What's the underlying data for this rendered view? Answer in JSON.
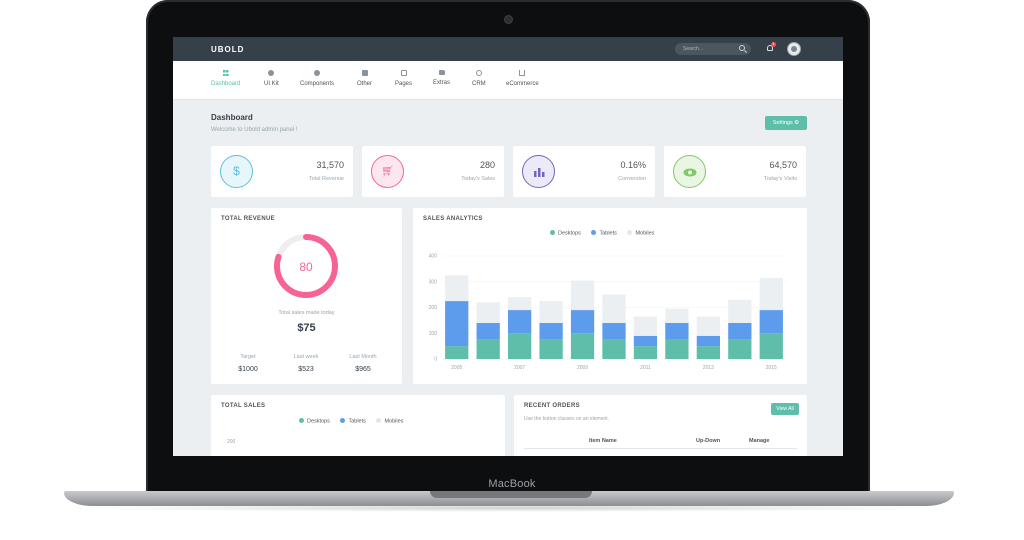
{
  "device": {
    "brand": "MacBook"
  },
  "topbar": {
    "logo": "UBOLD",
    "search_placeholder": "Search...",
    "notification_count": "1"
  },
  "menu": [
    {
      "label": "Dashboard",
      "icon": "grid-icon",
      "active": true
    },
    {
      "label": "UI Kit",
      "icon": "palette-icon"
    },
    {
      "label": "Components",
      "icon": "layers-icon"
    },
    {
      "label": "Other",
      "icon": "file-icon"
    },
    {
      "label": "Pages",
      "icon": "pages-icon"
    },
    {
      "label": "Extras",
      "icon": "folder-icon"
    },
    {
      "label": "CRM",
      "icon": "user-icon"
    },
    {
      "label": "eCommerce",
      "icon": "cart-icon"
    }
  ],
  "page": {
    "title": "Dashboard",
    "subtitle": "Welcome to Ubold admin panel !",
    "settings_label": "Settings"
  },
  "stats": [
    {
      "value": "31,570",
      "label": "Total Revenue",
      "icon": "dollar-icon",
      "color": "#5bc0de",
      "bg": "#e6f6fb"
    },
    {
      "value": "280",
      "label": "Today's Sales",
      "icon": "cart-icon",
      "color": "#f76397",
      "bg": "#fde7ef"
    },
    {
      "value": "0.16%",
      "label": "Conversion",
      "icon": "bar-chart-icon",
      "color": "#7266ba",
      "bg": "#eceaf6"
    },
    {
      "value": "64,570",
      "label": "Today's Visits",
      "icon": "eye-icon",
      "color": "#81c868",
      "bg": "#e9f6e4"
    }
  ],
  "revenue": {
    "title": "TOTAL REVENUE",
    "percent": 80,
    "percent_label": "80",
    "label": "Total sales made today",
    "amount": "$75",
    "cols": [
      {
        "label": "Target",
        "value": "$1000"
      },
      {
        "label": "Last week",
        "value": "$523"
      },
      {
        "label": "Last Month",
        "value": "$965"
      }
    ]
  },
  "sales_analytics": {
    "title": "SALES ANALYTICS",
    "legend": [
      "Desktops",
      "Tablets",
      "Mobiles"
    ]
  },
  "total_sales": {
    "title": "TOTAL SALES",
    "legend": [
      "Desktops",
      "Tablets",
      "Mobiles"
    ],
    "y_top": "200"
  },
  "orders": {
    "title": "RECENT ORDERS",
    "subtitle": "Use the button classes on an element.",
    "view_all": "View All",
    "headers": [
      "Item Name",
      "Up-Down",
      "Manage"
    ]
  },
  "colors": {
    "accent": "#5fbeaa",
    "desktops": "#5fbeaa",
    "tablets": "#5d9cec",
    "mobiles": "#ebeff2"
  },
  "chart_data": {
    "type": "bar",
    "stacked": true,
    "categories": [
      "2005",
      "2006",
      "2007",
      "2008",
      "2009",
      "2010",
      "2011",
      "2012",
      "2013",
      "2014",
      "2015"
    ],
    "x_tick_labels": [
      "2005",
      "2007",
      "2009",
      "2011",
      "2013",
      "2015"
    ],
    "series": [
      {
        "name": "Desktops",
        "values": [
          50,
          75,
          100,
          75,
          100,
          75,
          50,
          75,
          50,
          75,
          100
        ]
      },
      {
        "name": "Tablets",
        "values": [
          175,
          65,
          90,
          65,
          90,
          65,
          40,
          65,
          40,
          65,
          90
        ]
      },
      {
        "name": "Mobiles",
        "values": [
          100,
          80,
          50,
          85,
          115,
          110,
          75,
          55,
          75,
          90,
          125
        ]
      }
    ],
    "ylim": [
      0,
      400
    ],
    "y_ticks": [
      0,
      100,
      200,
      300,
      400
    ],
    "grid": true,
    "legend_position": "top"
  }
}
